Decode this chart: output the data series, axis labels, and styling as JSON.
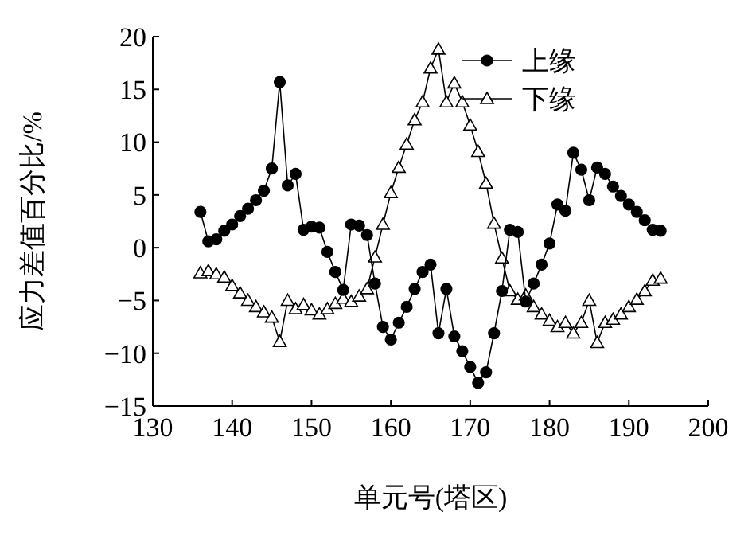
{
  "chart_data": {
    "type": "line",
    "xlabel": "单元号(塔区)",
    "ylabel": "应力差值百分比/%",
    "x": [
      136,
      137,
      138,
      139,
      140,
      141,
      142,
      143,
      144,
      145,
      146,
      147,
      148,
      149,
      150,
      151,
      152,
      153,
      154,
      155,
      156,
      157,
      158,
      159,
      160,
      161,
      162,
      163,
      164,
      165,
      166,
      167,
      168,
      169,
      170,
      171,
      172,
      173,
      174,
      175,
      176,
      177,
      178,
      179,
      180,
      181,
      182,
      183,
      184,
      185,
      186,
      187,
      188,
      189,
      190,
      191,
      192,
      193,
      194
    ],
    "series": [
      {
        "name": "上缘",
        "color": "#000000",
        "marker": "circle",
        "values": [
          3.4,
          0.6,
          0.8,
          1.6,
          2.2,
          3,
          3.7,
          4.5,
          5.4,
          7.5,
          15.7,
          5.9,
          7,
          1.7,
          2,
          1.9,
          -0.4,
          -2.3,
          -4,
          2.2,
          2.1,
          1.2,
          -3.4,
          -7.5,
          -8.7,
          -7.1,
          -5.6,
          -3.9,
          -2.3,
          -1.6,
          -8.1,
          -3.9,
          -8.4,
          -9.8,
          -11.3,
          -12.8,
          -11.8,
          -8.1,
          -4.1,
          1.7,
          1.5,
          -5.1,
          -3.4,
          -1.6,
          0.4,
          4.1,
          3.5,
          9,
          7.4,
          4.5,
          7.6,
          7,
          5.8,
          4.9,
          4.1,
          3.4,
          2.6,
          1.7,
          1.6
        ]
      },
      {
        "name": "下缘",
        "color": "#000000",
        "marker": "triangle",
        "values": [
          -2.4,
          -2.2,
          -2.5,
          -2.8,
          -3.6,
          -4.3,
          -5,
          -5.6,
          -6.1,
          -6.6,
          -8.9,
          -5,
          -5.8,
          -5.4,
          -5.9,
          -6.3,
          -5.8,
          -5.3,
          -4.8,
          -5.1,
          -4.6,
          -3.9,
          -0.9,
          2.2,
          5.2,
          7.6,
          9.8,
          12.1,
          13.8,
          17,
          18.8,
          13.8,
          15.6,
          13.8,
          11.6,
          9.1,
          6.1,
          2.3,
          -1,
          -4.1,
          -4.9,
          -4.5,
          -5.6,
          -6.3,
          -6.9,
          -7.5,
          -7.1,
          -8.1,
          -7.1,
          -5,
          -9,
          -7.1,
          -6.8,
          -6.3,
          -5.6,
          -4.9,
          -4.1,
          -3.1,
          -2.9
        ]
      }
    ],
    "xlim": [
      130,
      200
    ],
    "xticks": [
      130,
      140,
      150,
      160,
      170,
      180,
      190,
      200
    ],
    "ylim": [
      -15,
      20
    ],
    "yticks": [
      -15,
      -10,
      -5,
      0,
      5,
      10,
      15,
      20
    ],
    "grid": false,
    "legend": "top right",
    "line_style": "solid"
  }
}
